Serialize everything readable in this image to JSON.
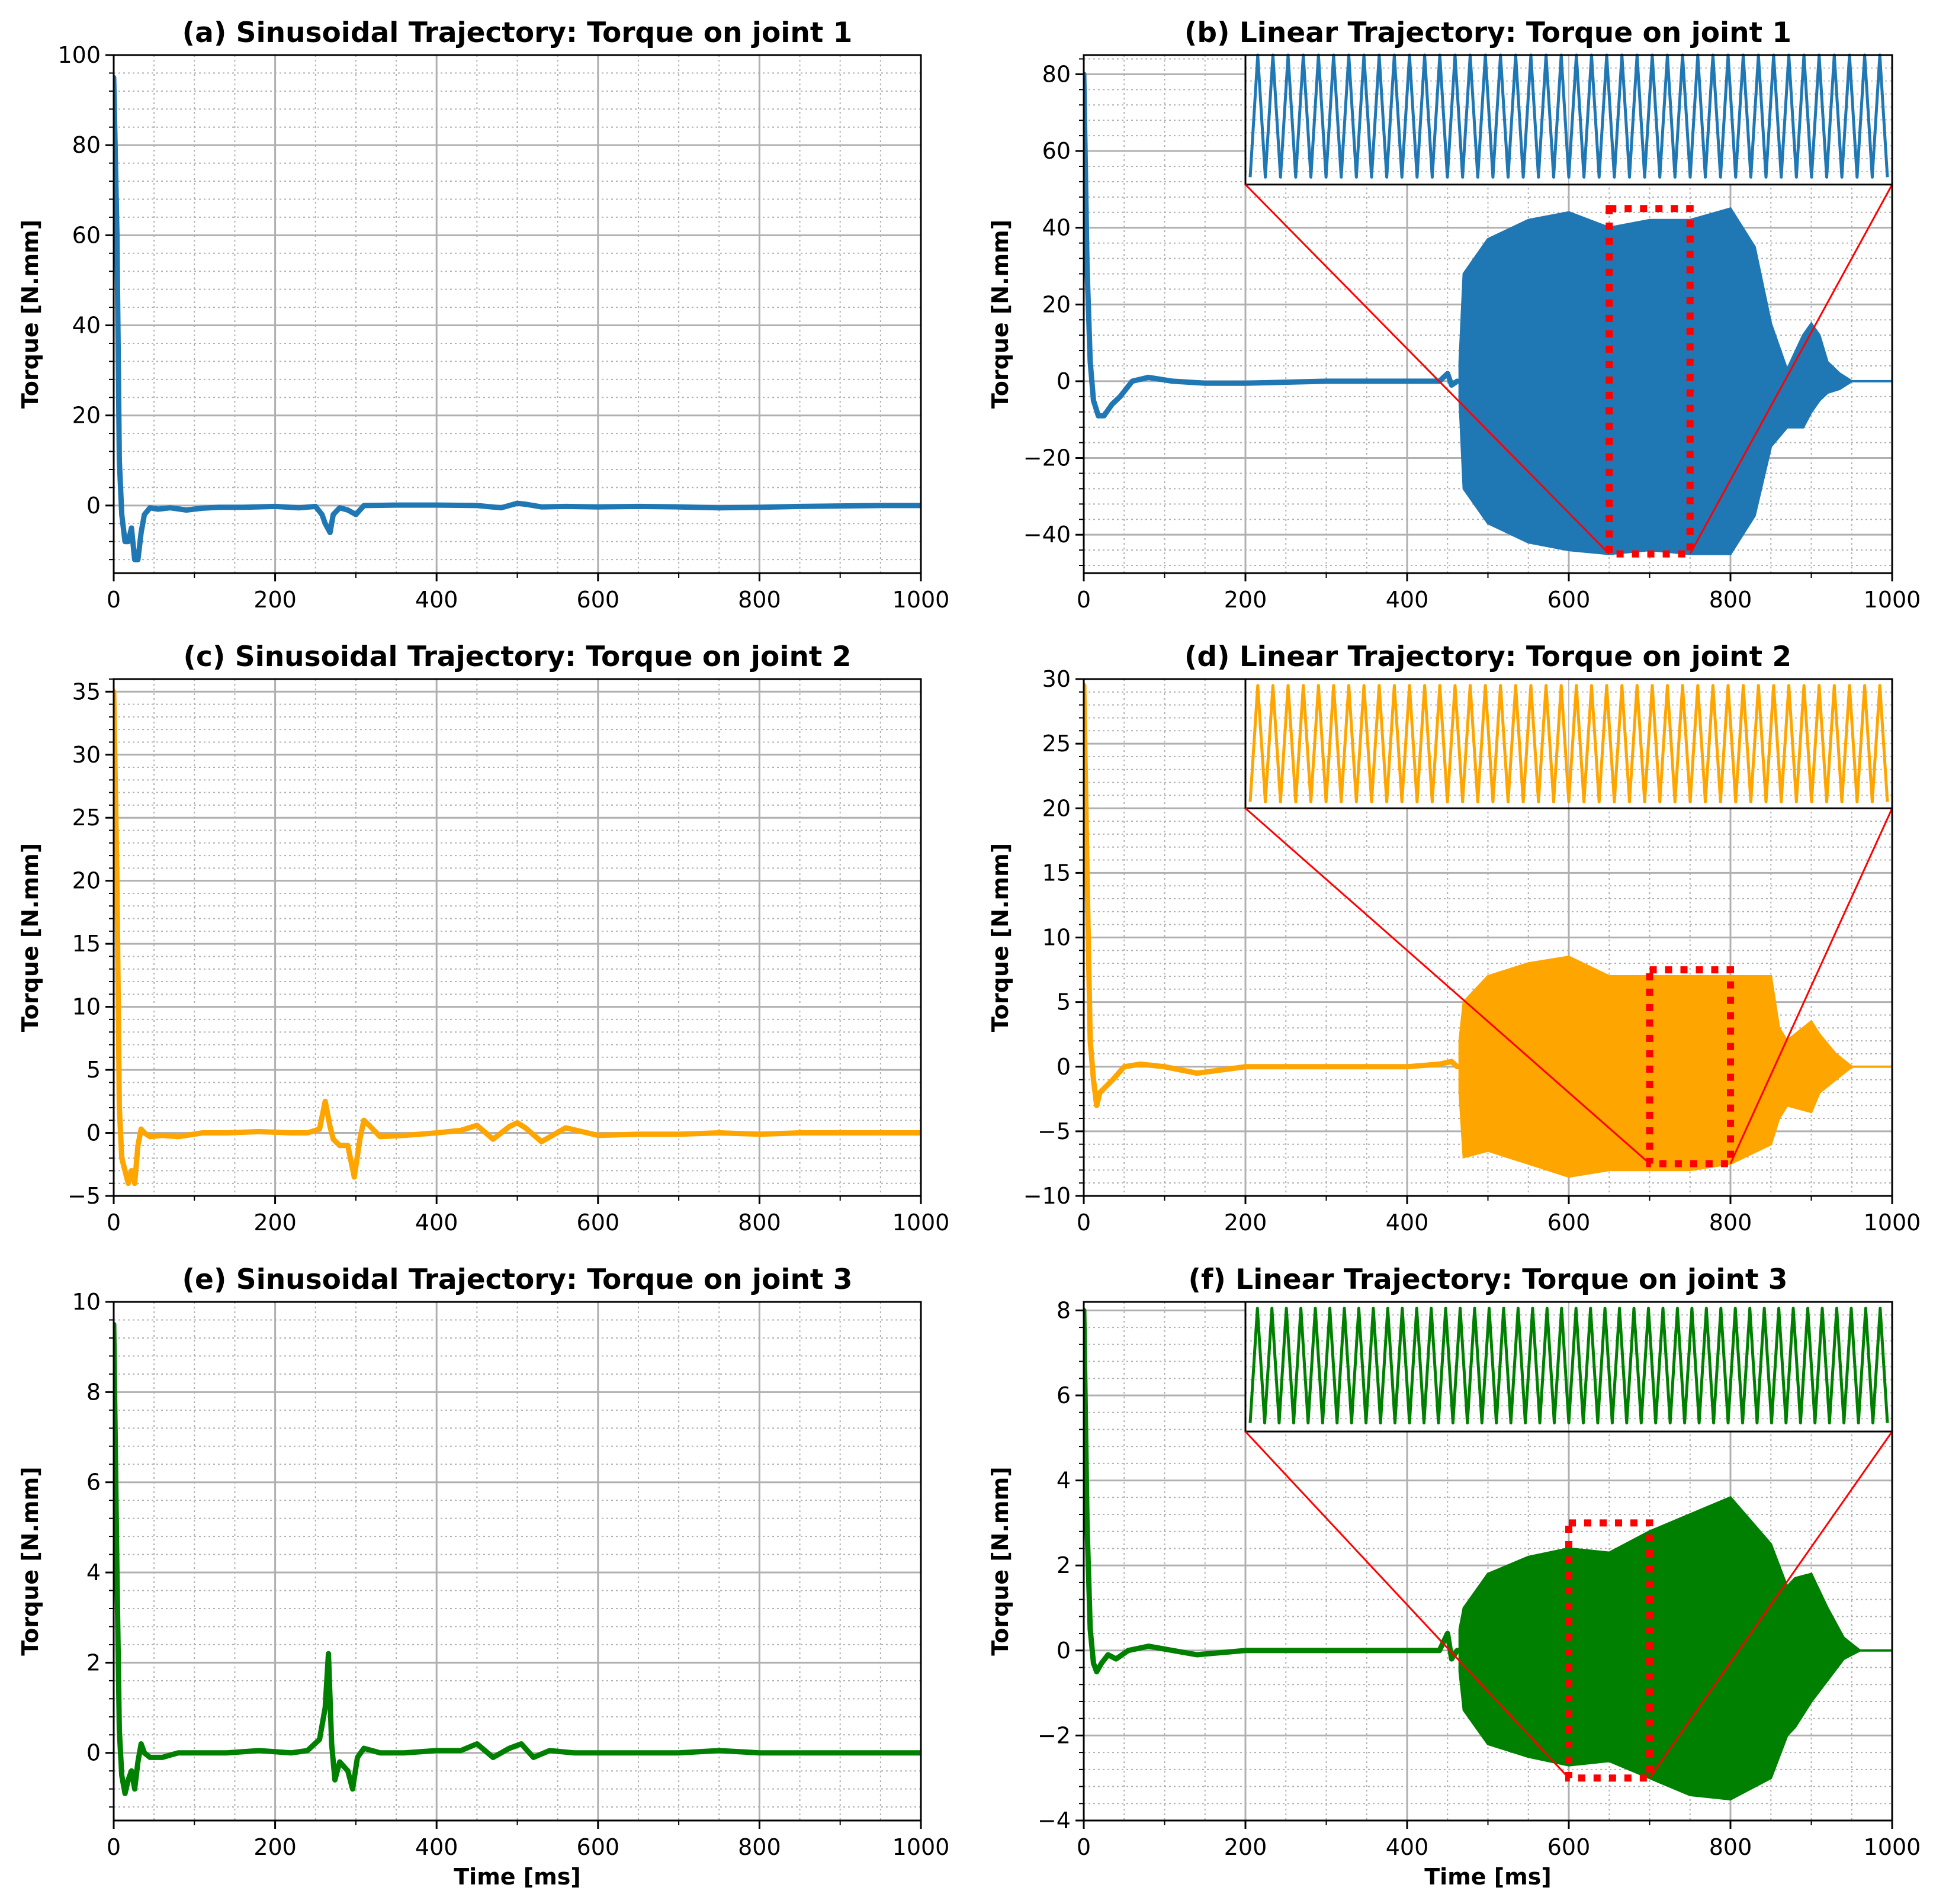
{
  "chart_data": [
    {
      "type": "line",
      "title": "(a) Sinusoidal Trajectory: Torque on joint 1",
      "xlabel": "",
      "ylabel": "Torque [N.mm]",
      "xlim": [
        0,
        1000
      ],
      "ylim": [
        -15,
        100
      ],
      "xticks": [
        0,
        200,
        400,
        600,
        800,
        1000
      ],
      "yticks": [
        0,
        20,
        40,
        60,
        80,
        100
      ],
      "color": "#1f77b4",
      "series": [
        {
          "name": "torque",
          "x": [
            0,
            4,
            7,
            10,
            14,
            18,
            22,
            26,
            30,
            34,
            38,
            45,
            55,
            70,
            90,
            110,
            130,
            160,
            200,
            230,
            250,
            258,
            262,
            268,
            272,
            280,
            290,
            300,
            310,
            350,
            400,
            450,
            480,
            500,
            510,
            530,
            560,
            600,
            650,
            700,
            750,
            800,
            850,
            900,
            950,
            1000
          ],
          "y": [
            95,
            60,
            10,
            -2,
            -8,
            -8,
            -5,
            -12,
            -12,
            -6,
            -2,
            -0.5,
            -0.8,
            -0.5,
            -1,
            -0.6,
            -0.4,
            -0.4,
            -0.2,
            -0.5,
            -0.2,
            -2,
            -4,
            -6,
            -2,
            -0.5,
            -1,
            -2,
            0,
            0.1,
            0.1,
            0,
            -0.5,
            0.5,
            0.3,
            -0.3,
            -0.2,
            -0.3,
            -0.2,
            -0.3,
            -0.5,
            -0.4,
            -0.2,
            -0.1,
            0,
            0
          ]
        }
      ]
    },
    {
      "type": "line",
      "title": "(b) Linear Trajectory: Torque on joint 1",
      "xlabel": "",
      "ylabel": "Torque [N.mm]",
      "xlim": [
        0,
        1000
      ],
      "ylim": [
        -50,
        85
      ],
      "xticks": [
        0,
        200,
        400,
        600,
        800,
        1000
      ],
      "yticks": [
        -40,
        -20,
        0,
        20,
        40,
        60,
        80
      ],
      "color": "#1f77b4",
      "series": [
        {
          "name": "torque",
          "x": [
            0,
            4,
            8,
            12,
            18,
            25,
            35,
            45,
            60,
            80,
            110,
            150,
            200,
            300,
            400,
            440,
            450,
            455,
            462
          ],
          "y": [
            80,
            30,
            5,
            -5,
            -9,
            -9,
            -6,
            -4,
            0,
            1,
            0,
            -0.5,
            -0.5,
            0,
            0,
            0,
            2,
            -1,
            0
          ]
        },
        {
          "name": "envelope-upper",
          "x": [
            465,
            470,
            500,
            550,
            600,
            650,
            700,
            750,
            800,
            830,
            850,
            870,
            890,
            900,
            910,
            920,
            935,
            950,
            1000
          ],
          "y": [
            5,
            28,
            37,
            42,
            44,
            40,
            42,
            42,
            45,
            35,
            15,
            3,
            12,
            15,
            12,
            5,
            2,
            0,
            0
          ]
        },
        {
          "name": "envelope-lower",
          "x": [
            465,
            470,
            500,
            550,
            600,
            650,
            700,
            750,
            800,
            830,
            850,
            870,
            890,
            900,
            910,
            920,
            935,
            950,
            1000
          ],
          "y": [
            -5,
            -28,
            -37,
            -42,
            -44,
            -45,
            -44,
            -45,
            -45,
            -35,
            -17,
            -12,
            -12,
            -8,
            -5,
            -3,
            -2,
            0,
            0
          ]
        }
      ],
      "zoom_box": {
        "x": [
          650,
          750
        ],
        "y": [
          -45,
          45
        ]
      },
      "inset": {
        "y_range": [
          50,
          85
        ],
        "cycles": 42,
        "amp": [
          52,
          85
        ]
      }
    },
    {
      "type": "line",
      "title": "(c) Sinusoidal Trajectory: Torque on joint 2",
      "xlabel": "",
      "ylabel": "Torque [N.mm]",
      "xlim": [
        0,
        1000
      ],
      "ylim": [
        -5,
        36
      ],
      "xticks": [
        0,
        200,
        400,
        600,
        800,
        1000
      ],
      "yticks": [
        -5,
        0,
        5,
        10,
        15,
        20,
        25,
        30,
        35
      ],
      "color": "#ffa500",
      "series": [
        {
          "name": "torque",
          "x": [
            0,
            4,
            7,
            10,
            14,
            18,
            22,
            26,
            30,
            34,
            38,
            45,
            60,
            80,
            110,
            140,
            180,
            220,
            240,
            255,
            262,
            268,
            272,
            280,
            290,
            298,
            305,
            310,
            318,
            330,
            360,
            400,
            430,
            450,
            470,
            490,
            500,
            510,
            530,
            560,
            600,
            650,
            700,
            750,
            800,
            850,
            900,
            950,
            1000
          ],
          "y": [
            35,
            20,
            2,
            -2,
            -3,
            -4,
            -3,
            -4,
            -1,
            0.3,
            0,
            -0.3,
            -0.2,
            -0.3,
            0,
            0,
            0.1,
            0,
            0,
            0.3,
            2.5,
            0.5,
            -0.5,
            -1,
            -1,
            -3.5,
            -0.5,
            1,
            0.5,
            -0.3,
            -0.2,
            0,
            0.2,
            0.6,
            -0.5,
            0.5,
            0.8,
            0.4,
            -0.7,
            0.4,
            -0.2,
            -0.1,
            -0.1,
            0,
            -0.1,
            0,
            0,
            0,
            0
          ]
        }
      ]
    },
    {
      "type": "line",
      "title": "(d) Linear Trajectory: Torque on joint 2",
      "xlabel": "",
      "ylabel": "Torque [N.mm]",
      "xlim": [
        0,
        1000
      ],
      "ylim": [
        -10,
        30
      ],
      "xticks": [
        0,
        200,
        400,
        600,
        800,
        1000
      ],
      "yticks": [
        -10,
        -5,
        0,
        5,
        10,
        15,
        20,
        25,
        30
      ],
      "color": "#ffa500",
      "series": [
        {
          "name": "torque",
          "x": [
            0,
            4,
            8,
            12,
            16,
            20,
            28,
            36,
            50,
            70,
            100,
            140,
            200,
            300,
            400,
            440,
            455,
            462
          ],
          "y": [
            29.5,
            15,
            2,
            -1,
            -3,
            -2,
            -1.5,
            -1,
            0,
            0.2,
            0,
            -0.5,
            0,
            0,
            0,
            0.2,
            0.4,
            0
          ]
        },
        {
          "name": "envelope-upper",
          "x": [
            465,
            470,
            500,
            550,
            600,
            650,
            700,
            750,
            800,
            850,
            860,
            870,
            900,
            910,
            930,
            950,
            1000
          ],
          "y": [
            2,
            5,
            7,
            8,
            8.5,
            7,
            7,
            7,
            7,
            7,
            3,
            2,
            3.5,
            2.5,
            1,
            0,
            0
          ]
        },
        {
          "name": "envelope-lower",
          "x": [
            465,
            470,
            500,
            550,
            600,
            650,
            700,
            750,
            800,
            850,
            860,
            870,
            900,
            910,
            930,
            950,
            1000
          ],
          "y": [
            -2,
            -7,
            -6.5,
            -7.5,
            -8.5,
            -8,
            -8,
            -8,
            -7.5,
            -6,
            -4,
            -3,
            -3.5,
            -2,
            -1,
            0,
            0
          ]
        }
      ],
      "zoom_box": {
        "x": [
          700,
          800
        ],
        "y": [
          -7.5,
          7.5
        ]
      },
      "inset": {
        "y_range": [
          20,
          30
        ],
        "cycles": 42,
        "amp": [
          20.5,
          29.5
        ]
      }
    },
    {
      "type": "line",
      "title": "(e) Sinusoidal Trajectory: Torque on joint 3",
      "xlabel": "Time [ms]",
      "ylabel": "Torque [N.mm]",
      "xlim": [
        0,
        1000
      ],
      "ylim": [
        -1.5,
        10
      ],
      "xticks": [
        0,
        200,
        400,
        600,
        800,
        1000
      ],
      "yticks": [
        0,
        2,
        4,
        6,
        8,
        10
      ],
      "color": "#008000",
      "series": [
        {
          "name": "torque",
          "x": [
            0,
            4,
            7,
            10,
            14,
            18,
            22,
            26,
            30,
            34,
            38,
            45,
            60,
            80,
            110,
            140,
            180,
            220,
            240,
            255,
            262,
            266,
            270,
            274,
            280,
            290,
            296,
            302,
            310,
            330,
            360,
            400,
            430,
            450,
            470,
            490,
            505,
            520,
            540,
            570,
            600,
            650,
            700,
            750,
            800,
            850,
            900,
            950,
            1000
          ],
          "y": [
            9.5,
            4,
            0.5,
            -0.5,
            -0.9,
            -0.6,
            -0.4,
            -0.8,
            -0.2,
            0.2,
            0,
            -0.1,
            -0.1,
            0,
            0,
            0,
            0.05,
            0,
            0.05,
            0.3,
            1,
            2.2,
            0.2,
            -0.6,
            -0.2,
            -0.4,
            -0.8,
            -0.1,
            0.1,
            0,
            0,
            0.05,
            0.05,
            0.2,
            -0.1,
            0.1,
            0.2,
            -0.1,
            0.05,
            0,
            0,
            0,
            0,
            0.05,
            0,
            0,
            0,
            0,
            0
          ]
        }
      ]
    },
    {
      "type": "line",
      "title": "(f) Linear Trajectory: Torque on joint 3",
      "xlabel": "Time [ms]",
      "ylabel": "Torque [N.mm]",
      "xlim": [
        0,
        1000
      ],
      "ylim": [
        -4,
        8.2
      ],
      "xticks": [
        0,
        200,
        400,
        600,
        800,
        1000
      ],
      "yticks": [
        -4,
        -2,
        0,
        2,
        4,
        6,
        8
      ],
      "color": "#008000",
      "series": [
        {
          "name": "torque",
          "x": [
            0,
            4,
            8,
            12,
            16,
            22,
            30,
            40,
            55,
            80,
            110,
            140,
            200,
            300,
            400,
            440,
            450,
            455,
            462
          ],
          "y": [
            8,
            3,
            0.5,
            -0.3,
            -0.5,
            -0.3,
            -0.1,
            -0.2,
            0,
            0.1,
            0,
            -0.1,
            0,
            0,
            0,
            0,
            0.4,
            -0.2,
            0
          ]
        },
        {
          "name": "envelope-upper",
          "x": [
            465,
            470,
            500,
            550,
            600,
            650,
            700,
            750,
            800,
            850,
            870,
            880,
            900,
            920,
            940,
            960,
            1000
          ],
          "y": [
            0.5,
            1,
            1.8,
            2.2,
            2.4,
            2.3,
            2.8,
            3.2,
            3.6,
            2.5,
            1.5,
            1.7,
            1.8,
            1,
            0.3,
            0,
            0
          ]
        },
        {
          "name": "envelope-lower",
          "x": [
            465,
            470,
            500,
            550,
            600,
            650,
            700,
            750,
            800,
            850,
            870,
            880,
            900,
            920,
            940,
            960,
            1000
          ],
          "y": [
            -0.5,
            -1.4,
            -2.2,
            -2.5,
            -2.7,
            -2.6,
            -3,
            -3.4,
            -3.5,
            -3,
            -2,
            -1.8,
            -1.2,
            -0.7,
            -0.2,
            0,
            0
          ]
        }
      ],
      "zoom_box": {
        "x": [
          600,
          700
        ],
        "y": [
          -3,
          3
        ]
      },
      "inset": {
        "y_range": [
          5.2,
          8.2
        ],
        "cycles": 44,
        "amp": [
          5.4,
          8.05
        ]
      }
    }
  ]
}
